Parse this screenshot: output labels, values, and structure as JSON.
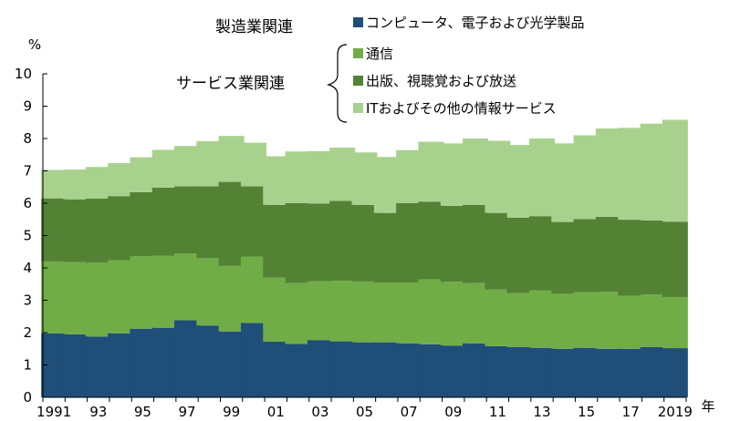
{
  "colors": {
    "computers": "#1f4e79",
    "telecom": "#70ad47",
    "publishing": "#548235",
    "it_services": "#a9d18e",
    "axis": "#000000"
  },
  "chart_data": {
    "type": "bar",
    "stacked": true,
    "ylabel": "%",
    "xlabel": "年",
    "ylim": [
      0,
      10
    ],
    "y_ticks": [
      "0",
      "1",
      "2",
      "3",
      "4",
      "5",
      "6",
      "7",
      "8",
      "9",
      "10"
    ],
    "grid": false,
    "legend_position": "top-right",
    "legend_group_labels": {
      "manufacturing": "製造業関連",
      "services": "サービス業関連"
    },
    "categories": [
      "1991",
      "1992",
      "1993",
      "1994",
      "1995",
      "1996",
      "1997",
      "1998",
      "1999",
      "2000",
      "2001",
      "2002",
      "2003",
      "2004",
      "2005",
      "2006",
      "2007",
      "2008",
      "2009",
      "2010",
      "2011",
      "2012",
      "2013",
      "2014",
      "2015",
      "2016",
      "2017",
      "2018",
      "2019"
    ],
    "x_tick_labels": [
      "1991",
      "",
      "93",
      "",
      "95",
      "",
      "97",
      "",
      "99",
      "",
      "01",
      "",
      "03",
      "",
      "05",
      "",
      "07",
      "",
      "09",
      "",
      "11",
      "",
      "13",
      "",
      "15",
      "",
      "17",
      "",
      "2019"
    ],
    "series": [
      {
        "name": "コンピュータ、電子および光学製品",
        "color_key": "computers",
        "values": [
          1.98,
          1.95,
          1.88,
          1.98,
          2.12,
          2.15,
          2.38,
          2.22,
          2.03,
          2.3,
          1.72,
          1.65,
          1.77,
          1.73,
          1.7,
          1.7,
          1.67,
          1.64,
          1.6,
          1.67,
          1.58,
          1.55,
          1.53,
          1.5,
          1.53,
          1.5,
          1.5,
          1.55,
          1.52
        ]
      },
      {
        "name": "通信",
        "color_key": "telecom",
        "values": [
          2.22,
          2.23,
          2.28,
          2.26,
          2.24,
          2.23,
          2.07,
          2.08,
          2.03,
          2.05,
          1.98,
          1.88,
          1.82,
          1.87,
          1.88,
          1.85,
          1.88,
          2.01,
          1.97,
          1.86,
          1.75,
          1.67,
          1.78,
          1.7,
          1.72,
          1.76,
          1.64,
          1.63,
          1.58
        ]
      },
      {
        "name": "出版、視聴覚および放送",
        "color_key": "publishing",
        "values": [
          1.95,
          1.94,
          1.98,
          1.98,
          1.98,
          2.1,
          2.07,
          2.22,
          2.6,
          2.17,
          2.25,
          2.47,
          2.4,
          2.47,
          2.37,
          2.15,
          2.45,
          2.4,
          2.35,
          2.42,
          2.37,
          2.33,
          2.29,
          2.22,
          2.26,
          2.32,
          2.35,
          2.29,
          2.33
        ]
      },
      {
        "name": "ITおよびその他の情報サービス",
        "color_key": "it_services",
        "values": [
          0.88,
          0.92,
          0.98,
          1.02,
          1.08,
          1.17,
          1.25,
          1.4,
          1.42,
          1.35,
          1.5,
          1.6,
          1.62,
          1.65,
          1.62,
          1.73,
          1.64,
          1.85,
          1.93,
          2.05,
          2.23,
          2.25,
          2.4,
          2.43,
          2.59,
          2.73,
          2.84,
          2.99,
          3.15
        ]
      }
    ]
  }
}
